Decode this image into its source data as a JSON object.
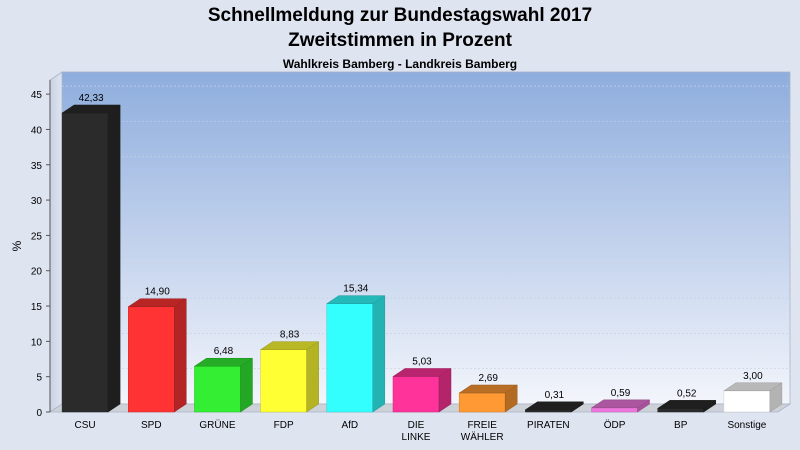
{
  "chart_data": {
    "type": "bar",
    "title": "Schnellmeldung zur Bundestagswahl 2017",
    "title2": "Zweitstimmen in Prozent",
    "subtitle": "Wahlkreis Bamberg - Landkreis Bamberg",
    "ylabel": "%",
    "xlabel": "",
    "ylim": [
      0,
      47
    ],
    "yticks": [
      "0",
      "5",
      "10",
      "15",
      "20",
      "25",
      "30",
      "35",
      "40",
      "45"
    ],
    "categories": [
      [
        "CSU"
      ],
      [
        "SPD"
      ],
      [
        "GRÜNE"
      ],
      [
        "FDP"
      ],
      [
        "AfD"
      ],
      [
        "DIE",
        "LINKE"
      ],
      [
        "FREIE",
        "WÄHLER"
      ],
      [
        "PIRATEN"
      ],
      [
        "ÖDP"
      ],
      [
        "BP"
      ],
      [
        "Sonstige"
      ]
    ],
    "values": [
      42.33,
      14.9,
      6.48,
      8.83,
      15.34,
      5.03,
      2.69,
      0.31,
      0.59,
      0.52,
      3.0
    ],
    "value_labels": [
      "42,33",
      "14,90",
      "6,48",
      "8,83",
      "15,34",
      "5,03",
      "2,69",
      "0,31",
      "0,59",
      "0,52",
      "3,00"
    ],
    "colors": [
      "#2b2b2b",
      "#ff3333",
      "#33ee33",
      "#ffff33",
      "#33ffff",
      "#ff3399",
      "#ff9933",
      "#2b2b2b",
      "#ee77dd",
      "#2b2b2b",
      "#ffffff"
    ],
    "grid": true,
    "legend": "none"
  }
}
